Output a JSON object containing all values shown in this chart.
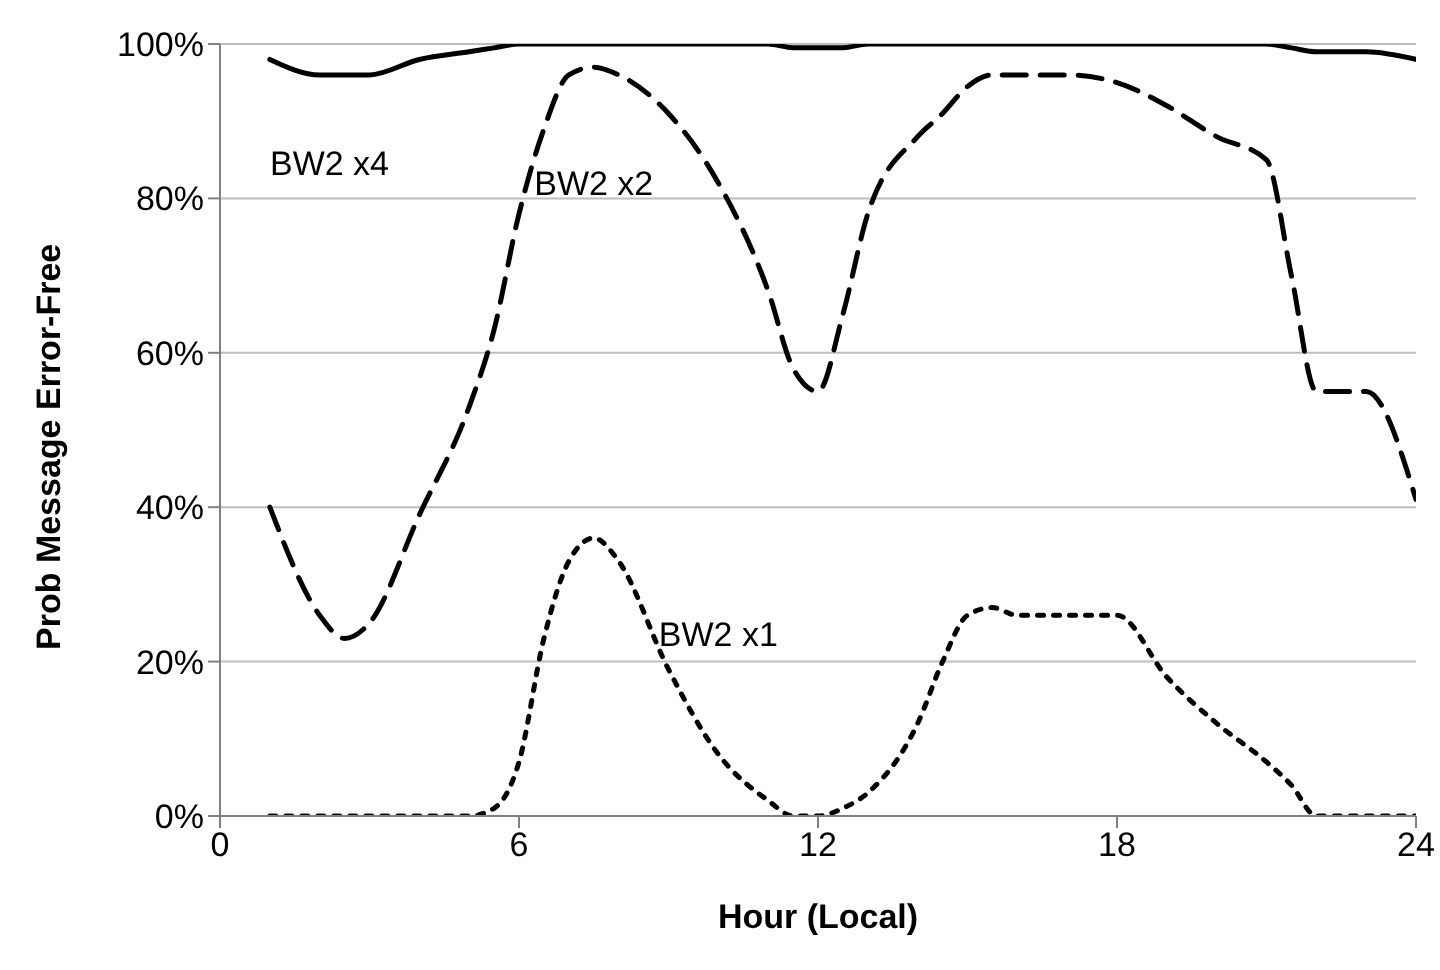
{
  "chart_data": {
    "type": "line",
    "xlabel": "Hour (Local)",
    "ylabel": "Prob Message Error-Free",
    "x": [
      1,
      2,
      2.5,
      3,
      4,
      5,
      5.5,
      6,
      6.5,
      7,
      7.5,
      8,
      9,
      10,
      11,
      11.5,
      12,
      12.5,
      13,
      14,
      14.5,
      15,
      15.5,
      16,
      17,
      18,
      19,
      20,
      21,
      21.5,
      22,
      23,
      24
    ],
    "series": [
      {
        "name": "BW2 x4",
        "color": "#000000",
        "line_style": "solid",
        "values": [
          98,
          96,
          96,
          96,
          98,
          99,
          99.5,
          100,
          100,
          100,
          100,
          100,
          100,
          100,
          100,
          99.5,
          99.5,
          99.5,
          100,
          100,
          100,
          100,
          100,
          100,
          100,
          100,
          100,
          100,
          100,
          99.5,
          99,
          99,
          98
        ]
      },
      {
        "name": "BW2 x2",
        "color": "#000000",
        "line_style": "dashed",
        "values": [
          40,
          26,
          23,
          25,
          39,
          53,
          63,
          78,
          89,
          96,
          97,
          96,
          91,
          82,
          68,
          58,
          55,
          65,
          78,
          88,
          91,
          94.5,
          96,
          96,
          96,
          95,
          92,
          88,
          85,
          70,
          55,
          55,
          41
        ]
      },
      {
        "name": "BW2 x1",
        "color": "#000000",
        "line_style": "dotted",
        "values": [
          0,
          0,
          0,
          0,
          0,
          0,
          1,
          7,
          23,
          33,
          36,
          33,
          19,
          8,
          2,
          0,
          0,
          1,
          3,
          12,
          20,
          26,
          27,
          26,
          26,
          26,
          18,
          12,
          7,
          4,
          0,
          0,
          0
        ]
      }
    ],
    "xlim": [
      0,
      24
    ],
    "xticks": [
      0,
      6,
      12,
      18,
      24
    ],
    "ylim": [
      0,
      100
    ],
    "yticks": [
      {
        "value": 0,
        "label": "0%"
      },
      {
        "value": 20,
        "label": "20%"
      },
      {
        "value": 40,
        "label": "40%"
      },
      {
        "value": 60,
        "label": "60%"
      },
      {
        "value": 80,
        "label": "80%"
      },
      {
        "value": 100,
        "label": "100%"
      }
    ],
    "grid": "y",
    "legend": false,
    "marker": "none"
  }
}
